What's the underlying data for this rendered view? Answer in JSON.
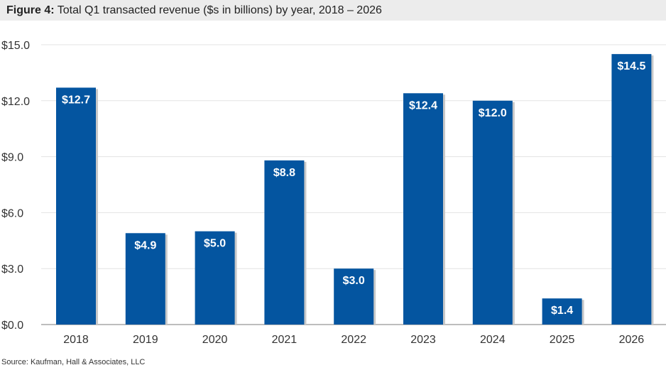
{
  "chart_data": {
    "type": "bar",
    "title_prefix": "Figure 4:",
    "title": "Total Q1 transacted revenue ($s in billions) by year, 2018 – 2026",
    "categories": [
      "2018",
      "2019",
      "2020",
      "2021",
      "2022",
      "2023",
      "2024",
      "2025",
      "2026"
    ],
    "values": [
      12.7,
      4.9,
      5.0,
      8.8,
      3.0,
      12.4,
      12.0,
      1.4,
      14.5
    ],
    "data_labels": [
      "$12.7",
      "$4.9",
      "$5.0",
      "$8.8",
      "$3.0",
      "$12.4",
      "$12.0",
      "$1.4",
      "$14.5"
    ],
    "yticks": [
      0,
      3,
      6,
      9,
      12,
      15
    ],
    "ytick_labels": [
      "$0.0",
      "$3.0",
      "$6.0",
      "$9.0",
      "$12.0",
      "$15.0"
    ],
    "ylim": [
      0,
      15
    ],
    "xlabel": "",
    "ylabel": "",
    "grid": true,
    "bar_color": "#0455a0",
    "source": "Source: Kaufman, Hall & Associates, LLC"
  }
}
